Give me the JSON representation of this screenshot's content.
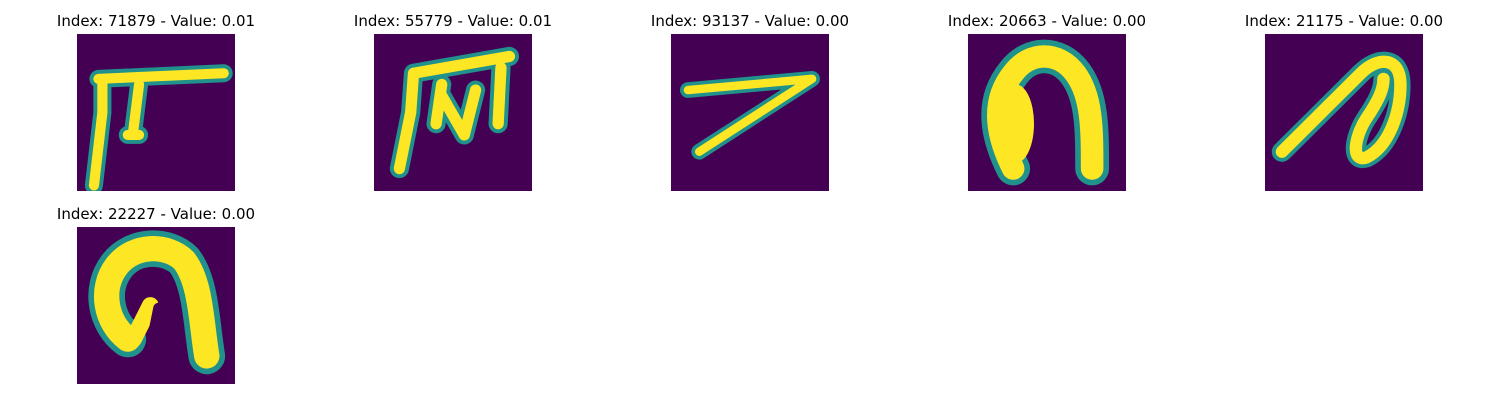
{
  "colormap": {
    "low": "#440154",
    "mid": "#21918c",
    "high": "#fde725"
  },
  "panels": [
    {
      "index": "71879",
      "value": "0.01",
      "title": "Index: 71879 - Value: 0.01",
      "depicts": "handwritten glyph resembling a T-like stroke"
    },
    {
      "index": "55779",
      "value": "0.01",
      "title": "Index: 55779 - Value: 0.01",
      "depicts": "handwritten glyph resembling an m-like stroke"
    },
    {
      "index": "93137",
      "value": "0.00",
      "title": "Index: 93137 - Value: 0.00",
      "depicts": "handwritten glyph resembling a 7-like stroke"
    },
    {
      "index": "20663",
      "value": "0.00",
      "title": "Index: 20663 - Value: 0.00",
      "depicts": "handwritten glyph resembling an arch"
    },
    {
      "index": "21175",
      "value": "0.00",
      "title": "Index: 21175 - Value: 0.00",
      "depicts": "handwritten glyph resembling a slanted loop"
    },
    {
      "index": "22227",
      "value": "0.00",
      "title": "Index: 22227 - Value: 0.00",
      "depicts": "handwritten glyph resembling an arch"
    }
  ]
}
